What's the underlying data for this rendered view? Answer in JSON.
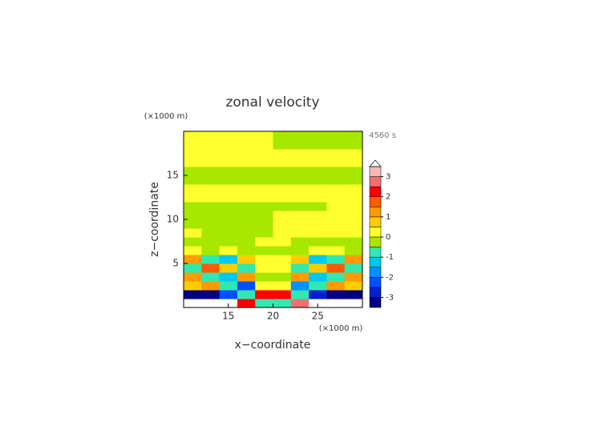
{
  "chart_data": {
    "type": "contour",
    "title": "zonal velocity",
    "time_label": "4560 s",
    "x_label": "x−coordinate",
    "y_label": "z−coordinate",
    "x_unit": "(×1000 m)",
    "y_unit": "(×1000 m)",
    "xlim": [
      10,
      30
    ],
    "ylim": [
      0,
      20
    ],
    "xticks": [
      15,
      20,
      25
    ],
    "yticks": [
      5,
      10,
      15
    ],
    "x": [
      11,
      13,
      15,
      17,
      19,
      21,
      23,
      25,
      27,
      29
    ],
    "z": [
      0.5,
      1.5,
      2.5,
      3.5,
      4.5,
      5.5,
      6.5,
      7.5,
      8.5,
      9.5,
      10.5,
      11.5,
      12.5,
      13.5,
      14.5,
      15.5,
      16.5,
      17.5,
      18.5,
      19.5
    ],
    "values": [
      [
        3.6,
        3.6,
        3.6,
        2,
        -1,
        -1,
        2.5,
        3.6,
        3.6,
        3.6
      ],
      [
        -3.2,
        -3.2,
        -2.5,
        -1,
        2,
        2,
        -1,
        -3,
        -3.4,
        -3.4
      ],
      [
        0.7,
        1.2,
        -1,
        -2.5,
        0.3,
        0.3,
        -2,
        -1,
        1.2,
        0.7
      ],
      [
        1.2,
        -0.8,
        -1.5,
        1,
        -0.3,
        -0.3,
        1.2,
        -1.5,
        -1,
        1.2
      ],
      [
        -0.8,
        1.5,
        0.7,
        -0.8,
        0.2,
        0.2,
        -0.8,
        0.8,
        1.5,
        -0.8
      ],
      [
        1,
        -1,
        -1.3,
        0.6,
        0.2,
        0.2,
        0.5,
        -1.3,
        -1,
        1
      ],
      [
        0.3,
        -0.2,
        0.3,
        -0.2,
        -0.2,
        -0.2,
        -0.2,
        0.3,
        0.3,
        -0.2
      ],
      [
        -0.2,
        -0.2,
        -0.2,
        -0.2,
        0.2,
        0.2,
        -0.2,
        -0.2,
        -0.2,
        -0.2
      ],
      [
        0.2,
        -0.2,
        -0.2,
        -0.2,
        -0.2,
        0.2,
        0.2,
        0.2,
        0.2,
        0.2
      ],
      [
        -0.2,
        -0.2,
        -0.2,
        -0.2,
        -0.2,
        0.2,
        0.2,
        0.2,
        0.2,
        0.2
      ],
      [
        -0.2,
        -0.2,
        -0.2,
        -0.2,
        -0.2,
        0.2,
        0.2,
        0.2,
        0.2,
        0.2
      ],
      [
        -0.2,
        -0.2,
        -0.2,
        -0.2,
        -0.2,
        -0.2,
        -0.2,
        -0.2,
        0.2,
        0.2
      ],
      [
        0.2,
        0.2,
        0.2,
        0.2,
        0.2,
        0.2,
        0.2,
        0.2,
        0.2,
        0.2
      ],
      [
        0.2,
        0.2,
        0.2,
        0.2,
        0.2,
        0.2,
        0.2,
        0.2,
        0.2,
        0.2
      ],
      [
        -0.2,
        -0.2,
        -0.2,
        -0.2,
        -0.2,
        -0.2,
        -0.2,
        -0.2,
        -0.2,
        -0.2
      ],
      [
        -0.2,
        -0.2,
        -0.2,
        -0.2,
        -0.2,
        -0.2,
        -0.2,
        -0.2,
        -0.2,
        -0.2
      ],
      [
        0.2,
        0.2,
        0.2,
        0.2,
        0.2,
        0.2,
        0.2,
        0.2,
        0.2,
        0.2
      ],
      [
        0.2,
        0.2,
        0.2,
        0.2,
        0.2,
        0.2,
        0.2,
        0.2,
        0.2,
        0.2
      ],
      [
        0.2,
        0.2,
        0.2,
        0.2,
        0.2,
        -0.2,
        -0.2,
        -0.2,
        -0.2,
        -0.2
      ],
      [
        0.2,
        0.2,
        0.2,
        0.2,
        0.2,
        -0.2,
        -0.2,
        -0.2,
        -0.2,
        -0.2
      ]
    ],
    "levels": [
      -3.5,
      -3,
      -2.5,
      -2,
      -1.5,
      -1,
      -0.5,
      0,
      0.5,
      1,
      1.5,
      2,
      2.5,
      3,
      3.5
    ],
    "colors": [
      "#000080",
      "#0020d0",
      "#0050ff",
      "#0090ff",
      "#00c8f0",
      "#30e8b0",
      "#a8e800",
      "#ffff30",
      "#ffcc00",
      "#ff9a00",
      "#ff5a00",
      "#ff0000",
      "#f07070",
      "#f8b8b8"
    ],
    "over_color": "#ffffff",
    "colorbar_ticks": [
      -3,
      -2,
      -1,
      0,
      1,
      2,
      3
    ]
  }
}
